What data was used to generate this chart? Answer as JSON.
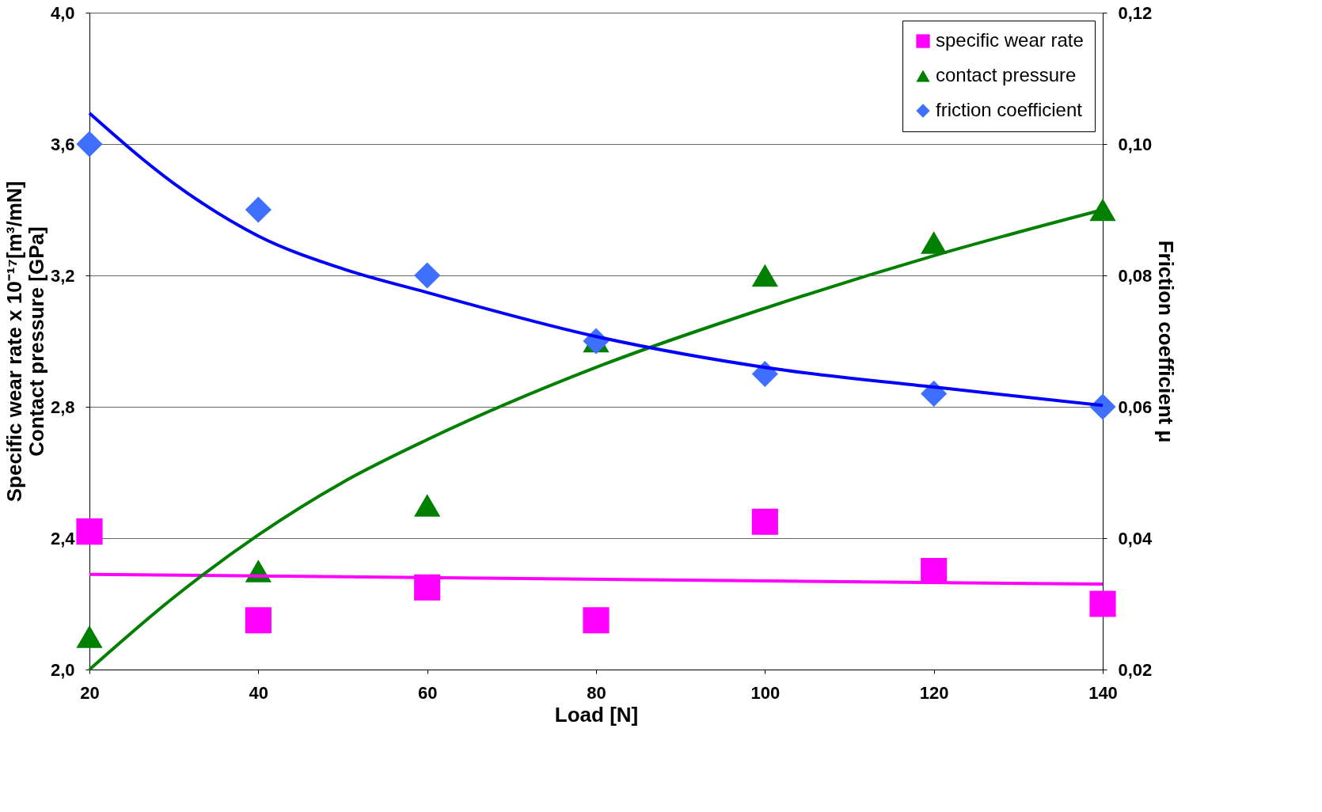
{
  "chart_data": {
    "type": "scatter",
    "xlabel": "Load [N]",
    "ylabel": "Specific wear rate x 10⁻¹⁷[m³/mN]\nContact pressure [GPa]",
    "y2label": "Friction coefficient μ",
    "xlim": [
      20,
      140
    ],
    "xticks": [
      20,
      40,
      60,
      80,
      100,
      120,
      140
    ],
    "ylim": [
      2.0,
      4.0
    ],
    "yticks": [
      {
        "value": 2.0,
        "label": "2,0"
      },
      {
        "value": 2.4,
        "label": "2,4"
      },
      {
        "value": 2.8,
        "label": "2,8"
      },
      {
        "value": 3.2,
        "label": "3,2"
      },
      {
        "value": 3.6,
        "label": "3,6"
      },
      {
        "value": 4.0,
        "label": "4,0"
      }
    ],
    "y2lim": [
      0.02,
      0.12
    ],
    "y2ticks": [
      {
        "value": 0.02,
        "label": "0,02"
      },
      {
        "value": 0.04,
        "label": "0,04"
      },
      {
        "value": 0.06,
        "label": "0,06"
      },
      {
        "value": 0.08,
        "label": "0,08"
      },
      {
        "value": 0.1,
        "label": "0,10"
      },
      {
        "value": 0.12,
        "label": "0,12"
      }
    ],
    "grid": "y",
    "legend": "top right",
    "series": [
      {
        "name": "specific wear rate",
        "marker": "square",
        "color": "#ff00ff",
        "x": [
          20,
          40,
          60,
          80,
          100,
          120,
          140
        ],
        "values": [
          2.42,
          2.15,
          2.25,
          2.15,
          2.45,
          2.3,
          2.2
        ]
      },
      {
        "name": "contact pressure",
        "marker": "triangle",
        "color": "#007f00",
        "x": [
          20,
          40,
          60,
          80,
          100,
          120,
          140
        ],
        "values": [
          2.1,
          2.3,
          2.5,
          3.0,
          3.2,
          3.3,
          3.4
        ]
      },
      {
        "name": "friction coefficient",
        "marker": "diamond",
        "color": "#3f6fff",
        "axis": "y2",
        "x": [
          20,
          40,
          60,
          80,
          100,
          120,
          140
        ],
        "values": [
          0.1,
          0.09,
          0.08,
          0.07,
          0.065,
          0.062,
          0.06
        ]
      },
      {
        "type": "line",
        "color": "#ff00ff",
        "x": [
          20,
          140
        ],
        "values": [
          2.29,
          2.26
        ]
      },
      {
        "type": "line",
        "color": "#007f00",
        "x": [
          20,
          30,
          40,
          50,
          60,
          80,
          100,
          120,
          140
        ],
        "values": [
          2.0,
          2.22,
          2.41,
          2.57,
          2.7,
          2.92,
          3.1,
          3.26,
          3.4
        ]
      },
      {
        "type": "line",
        "color": "#0000ff",
        "axis": "y2",
        "x": [
          20,
          30,
          40,
          50,
          60,
          80,
          100,
          120,
          140
        ],
        "values": [
          0.1047,
          0.094,
          0.086,
          0.081,
          0.0774,
          0.0707,
          0.066,
          0.063,
          0.0602
        ]
      }
    ]
  }
}
